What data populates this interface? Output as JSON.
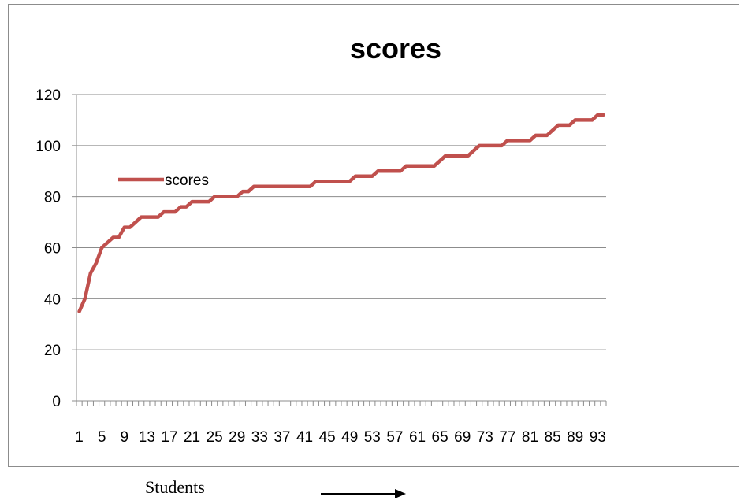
{
  "chart_data": {
    "type": "line",
    "title": "scores",
    "xlabel": "Students",
    "ylabel": "",
    "ylim": [
      0,
      120
    ],
    "yticks": [
      0,
      20,
      40,
      60,
      80,
      100,
      120
    ],
    "xtick_labels": [
      "1",
      "5",
      "9",
      "13",
      "17",
      "21",
      "25",
      "29",
      "33",
      "37",
      "41",
      "45",
      "49",
      "53",
      "57",
      "61",
      "65",
      "69",
      "73",
      "77",
      "81",
      "85",
      "89",
      "93"
    ],
    "grid": true,
    "legend": "left",
    "x": [
      1,
      2,
      3,
      4,
      5,
      6,
      7,
      8,
      9,
      10,
      11,
      12,
      13,
      14,
      15,
      16,
      17,
      18,
      19,
      20,
      21,
      22,
      23,
      24,
      25,
      26,
      27,
      28,
      29,
      30,
      31,
      32,
      33,
      34,
      35,
      36,
      37,
      38,
      39,
      40,
      41,
      42,
      43,
      44,
      45,
      46,
      47,
      48,
      49,
      50,
      51,
      52,
      53,
      54,
      55,
      56,
      57,
      58,
      59,
      60,
      61,
      62,
      63,
      64,
      65,
      66,
      67,
      68,
      69,
      70,
      71,
      72,
      73,
      74,
      75,
      76,
      77,
      78,
      79,
      80,
      81,
      82,
      83,
      84,
      85,
      86,
      87,
      88,
      89,
      90,
      91,
      92,
      93,
      94
    ],
    "series": [
      {
        "name": "scores",
        "color": "#c0504d",
        "values": [
          35,
          40,
          50,
          54,
          60,
          62,
          64,
          64,
          68,
          68,
          70,
          72,
          72,
          72,
          72,
          74,
          74,
          74,
          76,
          76,
          78,
          78,
          78,
          78,
          80,
          80,
          80,
          80,
          80,
          82,
          82,
          84,
          84,
          84,
          84,
          84,
          84,
          84,
          84,
          84,
          84,
          84,
          86,
          86,
          86,
          86,
          86,
          86,
          86,
          88,
          88,
          88,
          88,
          90,
          90,
          90,
          90,
          90,
          92,
          92,
          92,
          92,
          92,
          92,
          94,
          96,
          96,
          96,
          96,
          96,
          98,
          100,
          100,
          100,
          100,
          100,
          102,
          102,
          102,
          102,
          102,
          104,
          104,
          104,
          106,
          108,
          108,
          108,
          110,
          110,
          110,
          110,
          112,
          112
        ]
      }
    ]
  }
}
